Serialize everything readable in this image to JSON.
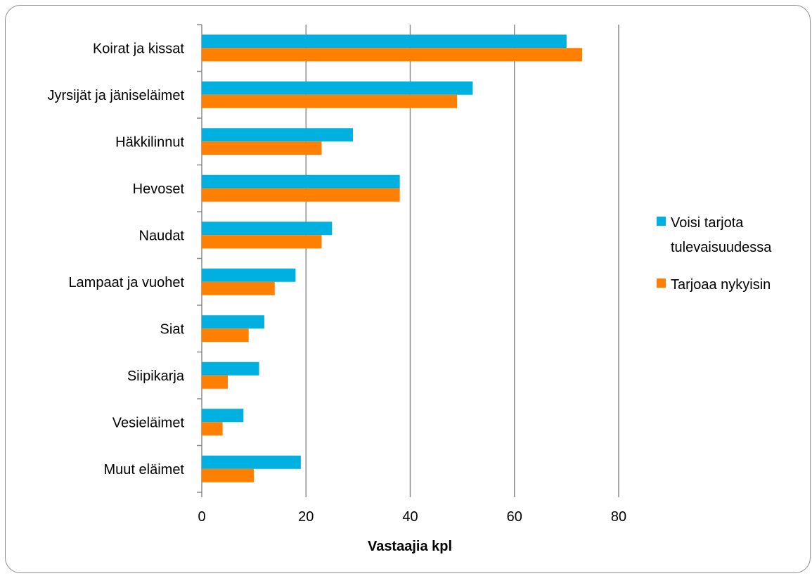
{
  "chart_data": {
    "type": "bar",
    "orientation": "horizontal",
    "categories": [
      "Koirat ja kissat",
      "Jyrsijät ja jäniseläimet",
      "Häkkilinnut",
      "Hevoset",
      "Naudat",
      "Lampaat ja vuohet",
      "Siat",
      "Siipikarja",
      "Vesieläimet",
      "Muut eläimet"
    ],
    "series": [
      {
        "name": "Voisi tarjota tulevaisuudessa",
        "legend_lines": [
          "Voisi tarjota",
          "tulevaisuudessa"
        ],
        "color": "#00b0e0",
        "values": [
          70,
          52,
          29,
          38,
          25,
          18,
          12,
          11,
          8,
          19
        ]
      },
      {
        "name": "Tarjoaa nykyisin",
        "legend_lines": [
          "Tarjoaa nykyisin"
        ],
        "color": "#ff8000",
        "values": [
          73,
          49,
          23,
          38,
          23,
          14,
          9,
          5,
          4,
          10
        ]
      }
    ],
    "title": "",
    "xlabel": "Vastaajia kpl",
    "ylabel": "",
    "xlim": [
      0,
      80
    ],
    "xticks": [
      0,
      20,
      40,
      60,
      80
    ],
    "grid": true,
    "legend_position": "right"
  }
}
